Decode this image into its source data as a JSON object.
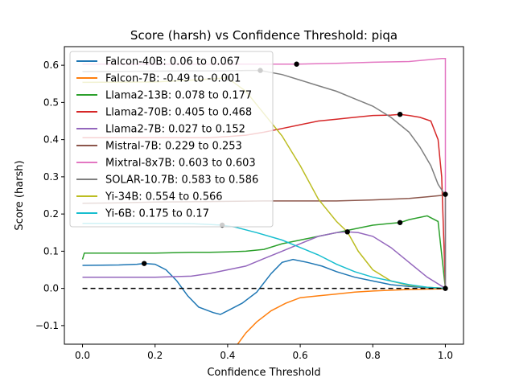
{
  "chart_data": {
    "type": "line",
    "title": "Score (harsh) vs Confidence Threshold: piqa",
    "xlabel": "Confidence Threshold",
    "ylabel": "Score (harsh)",
    "xlim": [
      -0.05,
      1.05
    ],
    "ylim": [
      -0.15,
      0.65
    ],
    "xticks": [
      "0.0",
      "0.2",
      "0.4",
      "0.6",
      "0.8",
      "1.0"
    ],
    "xtick_values": [
      0,
      0.2,
      0.4,
      0.6,
      0.8,
      1.0
    ],
    "yticks": [
      "−0.1",
      "0.0",
      "0.1",
      "0.2",
      "0.3",
      "0.4",
      "0.5",
      "0.6"
    ],
    "ytick_values": [
      -0.1,
      0,
      0.1,
      0.2,
      0.3,
      0.4,
      0.5,
      0.6
    ],
    "legend_position": "top-left",
    "grid": false,
    "baseline": {
      "y": 0,
      "style": "dashed",
      "color": "#000000"
    },
    "series": [
      {
        "name": "Falcon-40B: 0.06 to 0.067",
        "color": "#1f77b4",
        "x": [
          0,
          0.1,
          0.15,
          0.17,
          0.2,
          0.23,
          0.26,
          0.29,
          0.32,
          0.36,
          0.38,
          0.4,
          0.44,
          0.48,
          0.52,
          0.55,
          0.58,
          0.62,
          0.66,
          0.7,
          0.75,
          0.8,
          0.85,
          0.9,
          0.95,
          0.98,
          1.0
        ],
        "y": [
          0.062,
          0.063,
          0.065,
          0.067,
          0.065,
          0.05,
          0.02,
          -0.02,
          -0.05,
          -0.065,
          -0.07,
          -0.06,
          -0.04,
          -0.01,
          0.04,
          0.07,
          0.078,
          0.07,
          0.06,
          0.045,
          0.03,
          0.02,
          0.01,
          0.005,
          0.002,
          0.001,
          0
        ],
        "marker": {
          "x": 0.17,
          "y": 0.067
        }
      },
      {
        "name": "Falcon-7B: -0.49 to -0.001",
        "color": "#ff7f0e",
        "x": [
          0.42,
          0.45,
          0.48,
          0.52,
          0.56,
          0.6,
          0.65,
          0.7,
          0.75,
          0.8,
          0.85,
          0.9,
          0.95,
          1.0
        ],
        "y": [
          -0.16,
          -0.12,
          -0.09,
          -0.06,
          -0.04,
          -0.025,
          -0.02,
          -0.015,
          -0.01,
          -0.007,
          -0.005,
          -0.003,
          -0.002,
          -0.001
        ]
      },
      {
        "name": "Llama2-13B: 0.078 to 0.177",
        "color": "#2ca02c",
        "x": [
          0,
          0.005,
          0.1,
          0.2,
          0.3,
          0.35,
          0.4,
          0.45,
          0.5,
          0.55,
          0.6,
          0.65,
          0.7,
          0.75,
          0.8,
          0.85,
          0.875,
          0.9,
          0.95,
          0.98,
          1.0
        ],
        "y": [
          0.078,
          0.095,
          0.095,
          0.095,
          0.097,
          0.097,
          0.098,
          0.1,
          0.105,
          0.12,
          0.13,
          0.14,
          0.15,
          0.16,
          0.17,
          0.175,
          0.177,
          0.185,
          0.195,
          0.18,
          0
        ],
        "marker": {
          "x": 0.875,
          "y": 0.177
        }
      },
      {
        "name": "Llama2-70B: 0.405 to 0.468",
        "color": "#d62728",
        "x": [
          0,
          0.05,
          0.1,
          0.2,
          0.3,
          0.35,
          0.4,
          0.45,
          0.5,
          0.55,
          0.6,
          0.65,
          0.7,
          0.75,
          0.8,
          0.85,
          0.875,
          0.9,
          0.93,
          0.96,
          0.98,
          0.99,
          1.0
        ],
        "y": [
          0.405,
          0.405,
          0.405,
          0.405,
          0.405,
          0.405,
          0.408,
          0.412,
          0.42,
          0.43,
          0.44,
          0.45,
          0.455,
          0.46,
          0.465,
          0.466,
          0.468,
          0.465,
          0.46,
          0.45,
          0.4,
          0.3,
          0
        ],
        "marker": {
          "x": 0.875,
          "y": 0.468
        }
      },
      {
        "name": "Llama2-7B: 0.027 to 0.152",
        "color": "#9467bd",
        "x": [
          0,
          0.1,
          0.2,
          0.3,
          0.35,
          0.4,
          0.45,
          0.5,
          0.55,
          0.6,
          0.65,
          0.7,
          0.73,
          0.76,
          0.8,
          0.85,
          0.9,
          0.95,
          1.0
        ],
        "y": [
          0.03,
          0.03,
          0.03,
          0.033,
          0.04,
          0.05,
          0.06,
          0.08,
          0.1,
          0.12,
          0.14,
          0.15,
          0.152,
          0.15,
          0.14,
          0.11,
          0.07,
          0.03,
          0
        ]
      },
      {
        "name": "Mistral-7B: 0.229 to 0.253",
        "color": "#8c564b",
        "x": [
          0,
          0.1,
          0.2,
          0.3,
          0.4,
          0.5,
          0.6,
          0.7,
          0.8,
          0.9,
          0.95,
          0.99,
          1.0
        ],
        "y": [
          0.229,
          0.23,
          0.232,
          0.233,
          0.234,
          0.235,
          0.235,
          0.235,
          0.238,
          0.242,
          0.246,
          0.25,
          0.253
        ],
        "marker": {
          "x": 1.0,
          "y": 0.253
        }
      },
      {
        "name": "Mixtral-8x7B: 0.603 to 0.603",
        "color": "#e377c2",
        "x": [
          0,
          0.2,
          0.4,
          0.59,
          0.7,
          0.8,
          0.9,
          0.99,
          1.0,
          1.0
        ],
        "y": [
          0.603,
          0.603,
          0.603,
          0.603,
          0.605,
          0.608,
          0.61,
          0.618,
          0.618,
          0
        ],
        "marker": {
          "x": 0.59,
          "y": 0.603
        }
      },
      {
        "name": "SOLAR-10.7B: 0.583 to 0.586",
        "color": "#7f7f7f",
        "x": [
          0,
          0.2,
          0.3,
          0.4,
          0.45,
          0.49,
          0.55,
          0.6,
          0.65,
          0.7,
          0.75,
          0.8,
          0.85,
          0.9,
          0.93,
          0.96,
          0.98,
          1.0,
          1.0
        ],
        "y": [
          0.583,
          0.584,
          0.585,
          0.585,
          0.586,
          0.586,
          0.575,
          0.56,
          0.545,
          0.53,
          0.51,
          0.49,
          0.46,
          0.42,
          0.38,
          0.33,
          0.28,
          0.25,
          0
        ],
        "marker": {
          "x": 0.49,
          "y": 0.586
        }
      },
      {
        "name": "Yi-34B: 0.554 to 0.566",
        "color": "#bcbd22",
        "x": [
          0,
          0.2,
          0.3,
          0.35,
          0.4,
          0.45,
          0.5,
          0.55,
          0.6,
          0.65,
          0.7,
          0.73,
          0.76,
          0.8,
          0.85,
          0.9,
          0.95,
          1.0
        ],
        "y": [
          0.554,
          0.555,
          0.56,
          0.563,
          0.566,
          0.53,
          0.47,
          0.41,
          0.33,
          0.24,
          0.18,
          0.152,
          0.1,
          0.05,
          0.02,
          0.008,
          0.003,
          0
        ],
        "marker": {
          "x": 0.4,
          "y": 0.566
        }
      },
      {
        "name": "Yi-6B: 0.175 to 0.17",
        "color": "#17becf",
        "x": [
          0,
          0.1,
          0.2,
          0.3,
          0.35,
          0.385,
          0.42,
          0.48,
          0.55,
          0.6,
          0.65,
          0.7,
          0.75,
          0.8,
          0.85,
          0.9,
          0.95,
          1.0
        ],
        "y": [
          0.175,
          0.175,
          0.175,
          0.174,
          0.172,
          0.17,
          0.165,
          0.15,
          0.13,
          0.11,
          0.09,
          0.065,
          0.045,
          0.03,
          0.02,
          0.01,
          0.003,
          0
        ],
        "marker": {
          "x": 0.385,
          "y": 0.17
        }
      }
    ],
    "extra_markers": [
      {
        "x": 0.73,
        "y": 0.152
      },
      {
        "x": 1.0,
        "y": 0.0
      }
    ]
  }
}
